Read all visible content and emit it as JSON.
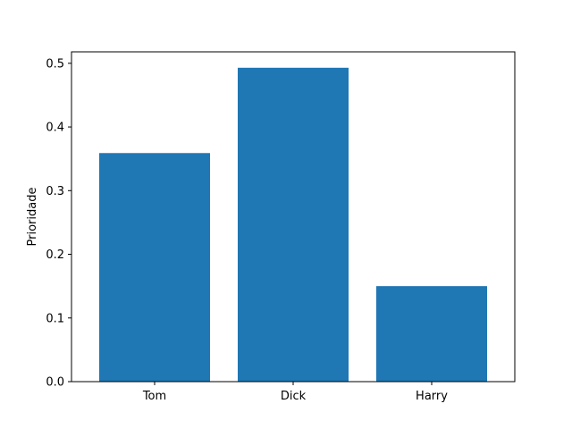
{
  "chart_data": {
    "type": "bar",
    "categories": [
      "Tom",
      "Dick",
      "Harry"
    ],
    "values": [
      0.359,
      0.493,
      0.15
    ],
    "title": "",
    "xlabel": "",
    "ylabel": "Prioridade",
    "ylim": [
      0,
      0.518
    ],
    "yticks": [
      0.0,
      0.1,
      0.2,
      0.3,
      0.4,
      0.5
    ],
    "ytick_labels": [
      "0.0",
      "0.1",
      "0.2",
      "0.3",
      "0.4",
      "0.5"
    ],
    "bar_color": "#1f77b4",
    "grid": false,
    "legend": "none"
  }
}
